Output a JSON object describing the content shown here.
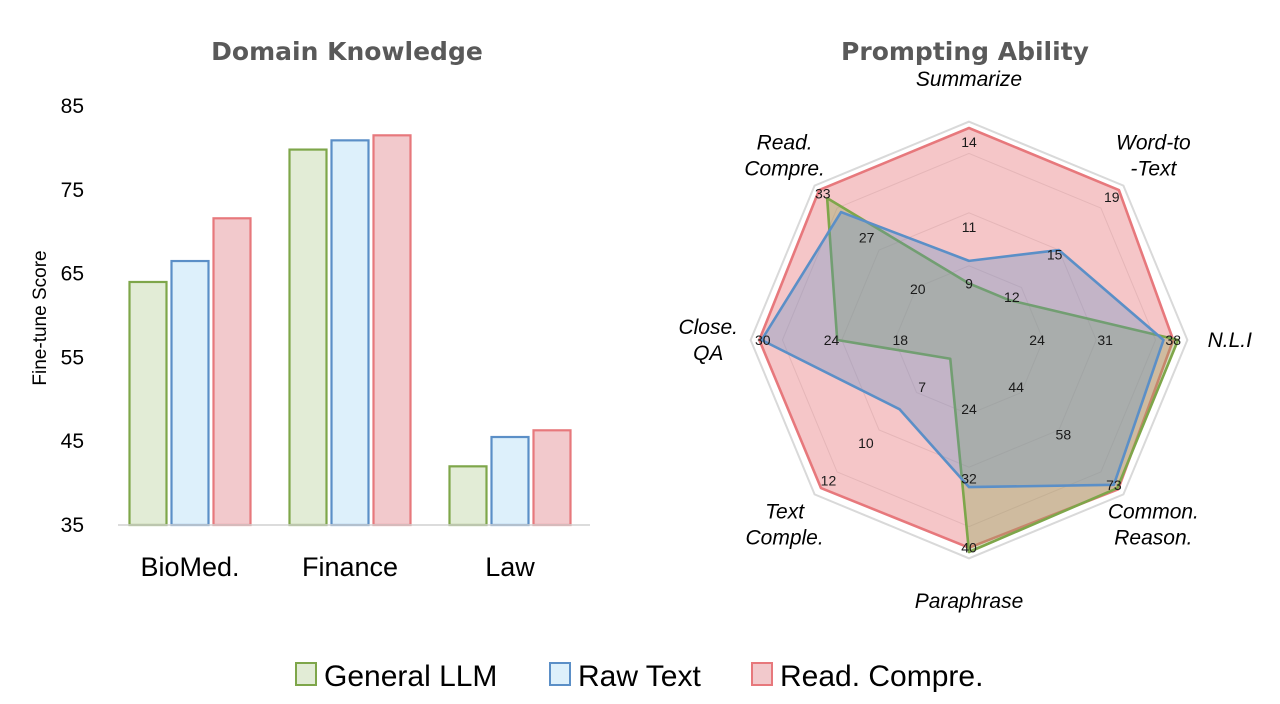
{
  "colors": {
    "general": {
      "fill": "#e2ecd6",
      "stroke": "#7ea64a"
    },
    "raw": {
      "fill": "#ddf0fb",
      "stroke": "#5b8fc7"
    },
    "read": {
      "fill": "#f2c9cc",
      "stroke": "#e7787c"
    }
  },
  "legend": [
    {
      "key": "general",
      "label": "General LLM"
    },
    {
      "key": "raw",
      "label": "Raw Text"
    },
    {
      "key": "read",
      "label": "Read. Compre."
    }
  ],
  "chart_data": [
    {
      "type": "bar",
      "title": "Domain Knowledge",
      "ylabel": "Fine-tune Score",
      "ylim": [
        35,
        85
      ],
      "yticks": [
        35,
        45,
        55,
        65,
        75,
        85
      ],
      "categories": [
        "BioMed.",
        "Finance",
        "Law"
      ],
      "series": [
        {
          "name": "General LLM",
          "key": "general",
          "values": [
            64.0,
            79.8,
            42.0
          ]
        },
        {
          "name": "Raw Text",
          "key": "raw",
          "values": [
            66.5,
            80.9,
            45.5
          ]
        },
        {
          "name": "Read. Compre.",
          "key": "read",
          "values": [
            71.6,
            81.5,
            46.3
          ]
        }
      ]
    },
    {
      "type": "radar",
      "title": "Prompting Ability",
      "axes": [
        {
          "label": [
            "Summarize"
          ],
          "ticks": [
            "9",
            "11",
            "14"
          ],
          "min": 7,
          "max": 14.5
        },
        {
          "label": [
            "Word-to",
            "-Text"
          ],
          "ticks": [
            "12",
            "15",
            "19"
          ],
          "min": 9,
          "max": 19.5
        },
        {
          "label": [
            "N.L.I"
          ],
          "ticks": [
            "24",
            "31",
            "38"
          ],
          "min": 17,
          "max": 38.8
        },
        {
          "label": [
            "Common.",
            "Reason."
          ],
          "ticks": [
            "44",
            "58",
            "73"
          ],
          "min": 30,
          "max": 74.5
        },
        {
          "label": [
            "Paraphrase"
          ],
          "ticks": [
            "24",
            "32",
            "40"
          ],
          "min": 16,
          "max": 40.5
        },
        {
          "label": [
            "Text",
            "Comple."
          ],
          "ticks": [
            "7",
            "10",
            "12"
          ],
          "min": 4.5,
          "max": 12.5
        },
        {
          "label": [
            "Close.",
            "QA"
          ],
          "ticks": [
            "18",
            "24",
            "30"
          ],
          "min": 12,
          "max": 30.5
        },
        {
          "label": [
            "Read.",
            "Compre."
          ],
          "ticks": [
            "20",
            "27",
            "33"
          ],
          "min": 13,
          "max": 33.5
        }
      ],
      "series": [
        {
          "name": "Read. Compre.",
          "key": "read",
          "values": [
            14.5,
            19.5,
            38.0,
            74.3,
            40.0,
            12.4,
            30.3,
            33.5
          ]
        },
        {
          "name": "General LLM",
          "key": "general",
          "values": [
            9.0,
            11.8,
            38.5,
            74.0,
            40.5,
            5.5,
            23.5,
            32.4
          ]
        },
        {
          "name": "Raw Text",
          "key": "raw",
          "values": [
            9.8,
            15.3,
            37.0,
            73.0,
            33.0,
            8.2,
            30.1,
            30.5
          ]
        }
      ]
    }
  ]
}
